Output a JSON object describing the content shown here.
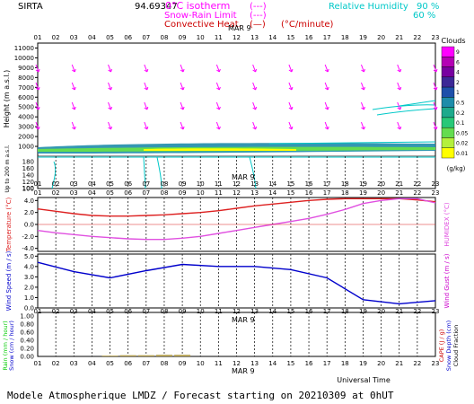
{
  "header": {
    "station": "SIRTA",
    "coord": "94.69347",
    "legend_left": [
      {
        "label": "0°C isotherm",
        "swatch": "(---)",
        "color": "#ff00ff"
      },
      {
        "label": "Snow-Rain Limit",
        "swatch": "(---)",
        "color": "#ff00ff"
      },
      {
        "label": "Convective Heat.",
        "swatch": "(—)",
        "suffix": "(°C/minute)",
        "color": "#cc0000"
      }
    ],
    "legend_right": [
      {
        "label": "Relative Humidity",
        "value": "90 %",
        "color": "#00c8c8"
      },
      {
        "label": "",
        "value": "60 %",
        "color": "#00c8c8"
      }
    ]
  },
  "footer": {
    "text": "Modele Atmospherique LMDZ / Forecast starting on 20210309 at 0hUT",
    "xaxis_label": "Universal Time",
    "date_label": "MAR  9"
  },
  "hours": [
    "01",
    "02",
    "03",
    "04",
    "05",
    "06",
    "07",
    "08",
    "09",
    "10",
    "11",
    "12",
    "13",
    "14",
    "15",
    "16",
    "17",
    "18",
    "19",
    "20",
    "21",
    "22",
    "23"
  ],
  "clouds_colorbar": {
    "title": "Clouds",
    "unit": "(g/kg)",
    "ticks": [
      "9",
      "6",
      "4",
      "2",
      "1",
      "0.5",
      "0.2",
      "0.1",
      "0.05",
      "0.02",
      "0.01"
    ],
    "colors": [
      "#ff00ff",
      "#b400b4",
      "#7800a0",
      "#3c2896",
      "#1e50aa",
      "#1e8caa",
      "#1eaa8c",
      "#28c878",
      "#64dc50",
      "#b4f03c",
      "#ffff00"
    ]
  },
  "chart_data": [
    {
      "type": "heatmap",
      "title": "",
      "ylabel": "Height (m a.s.l.)",
      "ylabel2": "Up to 200 m a.s.l.",
      "yticks_upper": [
        1000,
        2000,
        3000,
        4000,
        5000,
        6000,
        7000,
        8000,
        9000,
        10000,
        11000
      ],
      "yticks_lower": [
        100,
        120,
        140,
        160,
        180
      ],
      "ylim": [
        0,
        11500
      ],
      "x": [
        1,
        23
      ],
      "wind_arrow_hours": [
        1,
        3,
        5,
        7,
        9,
        11,
        13,
        15,
        17,
        19,
        21,
        23
      ],
      "note": "low cloud layer near 1000 m"
    },
    {
      "type": "line",
      "ylabel": "Temperature (°C)",
      "ylabel2": "HUMIDEX (°C)",
      "yticks": [
        "4.0",
        "2.0",
        "0.0",
        "-2.0",
        "-4.0"
      ],
      "ylim": [
        -4.5,
        4.5
      ],
      "x": [
        1,
        2,
        3,
        4,
        5,
        6,
        7,
        8,
        9,
        10,
        11,
        12,
        13,
        14,
        15,
        16,
        17,
        18,
        19,
        20,
        21,
        22,
        23
      ],
      "series": [
        {
          "name": "Temperature",
          "color": "#dd2020",
          "values": [
            2.6,
            2.2,
            1.8,
            1.5,
            1.4,
            1.4,
            1.5,
            1.6,
            1.8,
            2.0,
            2.3,
            2.7,
            3.1,
            3.4,
            3.7,
            4.0,
            4.2,
            4.3,
            4.3,
            4.3,
            4.3,
            4.1,
            3.8
          ]
        },
        {
          "name": "HUMIDEX",
          "color": "#e050e0",
          "values": [
            -1.0,
            -1.4,
            -1.7,
            -2.0,
            -2.2,
            -2.4,
            -2.5,
            -2.5,
            -2.3,
            -2.0,
            -1.5,
            -1.0,
            -0.5,
            0.0,
            0.5,
            1.0,
            1.7,
            2.5,
            3.5,
            4.0,
            4.3,
            4.3,
            3.6
          ]
        }
      ]
    },
    {
      "type": "line",
      "ylabel": "Wind Speed (m / s)",
      "ylabel2": "Wind Gust (m / s)",
      "yticks": [
        "5.0",
        "4.0",
        "3.0",
        "2.0",
        "1.0",
        "0.0"
      ],
      "ylim": [
        0,
        5.2
      ],
      "x": [
        1,
        3,
        5,
        7,
        9,
        11,
        13,
        15,
        17,
        19,
        21,
        23
      ],
      "series": [
        {
          "name": "Wind Speed",
          "color": "#0000cc",
          "values": [
            4.4,
            3.5,
            2.9,
            3.6,
            4.2,
            4.0,
            4.0,
            3.7,
            2.9,
            0.8,
            0.4,
            0.7
          ]
        }
      ]
    },
    {
      "type": "bar",
      "ylabel": "Rain (mm / hour)",
      "ylabel_b": "Snow (cm / hour)",
      "ylabel2": "CAPE (J / g)",
      "ylabel2_b": "Snow Depth (cm)",
      "ylabel2_c": "Cloud Fraction",
      "yticks": [
        "1.00",
        "0.80",
        "0.60",
        "0.40",
        "0.20",
        "0.00"
      ],
      "ylim": [
        0,
        1.05
      ],
      "x": [
        1,
        2,
        3,
        4,
        5,
        6,
        7,
        8,
        9,
        10,
        11,
        12,
        13,
        14,
        15,
        16,
        17,
        18,
        19,
        20,
        21,
        22,
        23
      ],
      "values": [
        0,
        0,
        0,
        0,
        0.02,
        0.03,
        0.03,
        0.04,
        0.04,
        0,
        0,
        0,
        0,
        0,
        0,
        0,
        0,
        0,
        0,
        0,
        0,
        0,
        0
      ]
    }
  ]
}
